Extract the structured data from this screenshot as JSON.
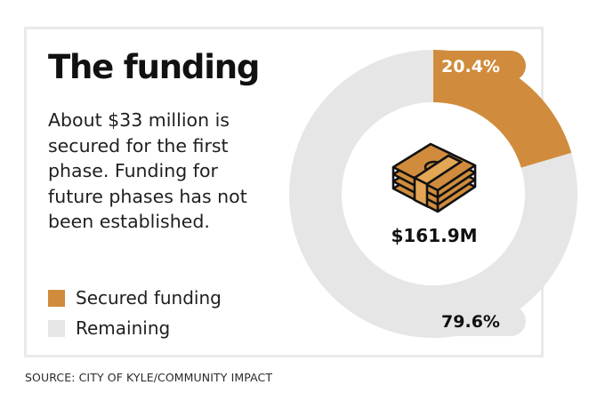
{
  "header": {
    "title": "The funding",
    "description": "About $33 million is secured for the first phase. Funding for future phases has not been established."
  },
  "legend": [
    {
      "label": "Secured funding",
      "color": "#d08c3c"
    },
    {
      "label": "Remaining",
      "color": "#e6e6e6"
    }
  ],
  "source": "SOURCE: CITY OF KYLE/COMMUNITY IMPACT",
  "chart_data": {
    "type": "pie",
    "variant": "donut",
    "total_label": "$161.9M",
    "center_icon": "money-stack-icon",
    "slices": [
      {
        "name": "Secured funding",
        "value": 20.4,
        "label": "20.4%",
        "color": "#d08c3c"
      },
      {
        "name": "Remaining",
        "value": 79.6,
        "label": "79.6%",
        "color": "#e6e6e6"
      }
    ]
  }
}
